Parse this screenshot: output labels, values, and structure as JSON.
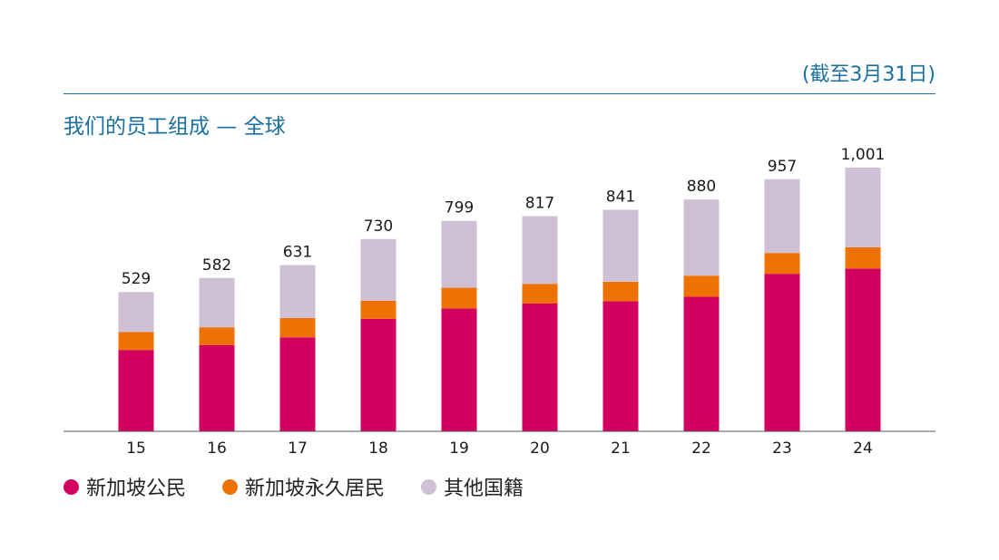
{
  "note": "(截至3月31日)",
  "title": "我们的员工组成 — 全球",
  "colors": {
    "accent": "#1a6fa3",
    "citizens": "#d4005f",
    "pr": "#ee7203",
    "others": "#cfc0d6",
    "axis": "#555555"
  },
  "legend": [
    {
      "label": "新加坡公民",
      "color": "#d4005f"
    },
    {
      "label": "新加坡永久居民",
      "color": "#ee7203"
    },
    {
      "label": "其他国籍",
      "color": "#cfc0d6"
    }
  ],
  "chart_data": {
    "type": "bar",
    "stacked": true,
    "categories": [
      "15",
      "16",
      "17",
      "18",
      "19",
      "20",
      "21",
      "22",
      "23",
      "24"
    ],
    "series": [
      {
        "name": "新加坡公民",
        "color": "#d4005f",
        "values": [
          309,
          327,
          357,
          427,
          466,
          485,
          494,
          511,
          598,
          618
        ]
      },
      {
        "name": "新加坡永久居民",
        "color": "#ee7203",
        "values": [
          68,
          68,
          73,
          69,
          79,
          75,
          74,
          80,
          79,
          81
        ]
      },
      {
        "name": "其他国籍",
        "color": "#cfc0d6",
        "values": [
          152,
          187,
          201,
          234,
          254,
          257,
          273,
          289,
          280,
          302
        ]
      }
    ],
    "totals": [
      "529",
      "582",
      "631",
      "730",
      "799",
      "817",
      "841",
      "880",
      "957",
      "1,001"
    ],
    "ylim": [
      0,
      1001
    ]
  }
}
